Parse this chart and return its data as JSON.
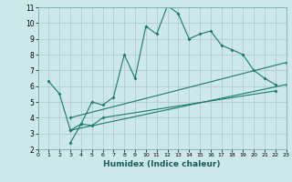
{
  "title": "",
  "xlabel": "Humidex (Indice chaleur)",
  "background_color": "#cce8e8",
  "grid_color": "#b0cccc",
  "line_color": "#1a7a6a",
  "xlim": [
    0,
    23
  ],
  "ylim": [
    2,
    11
  ],
  "xticks": [
    0,
    1,
    2,
    3,
    4,
    5,
    6,
    7,
    8,
    9,
    10,
    11,
    12,
    13,
    14,
    15,
    16,
    17,
    18,
    19,
    20,
    21,
    22,
    23
  ],
  "yticks": [
    2,
    3,
    4,
    5,
    6,
    7,
    8,
    9,
    10,
    11
  ],
  "line1_x": [
    1,
    2,
    3,
    4,
    5,
    6,
    7,
    8,
    9,
    10,
    11,
    12,
    13,
    14,
    15,
    16,
    17,
    18,
    19,
    20,
    21,
    22
  ],
  "line1_y": [
    6.3,
    5.5,
    3.2,
    3.6,
    5.0,
    4.8,
    5.3,
    8.0,
    6.5,
    9.8,
    9.3,
    11.1,
    10.6,
    9.0,
    9.3,
    9.5,
    8.6,
    8.3,
    8.0,
    7.0,
    6.5,
    6.1
  ],
  "line2_x": [
    3,
    4,
    5,
    6,
    22
  ],
  "line2_y": [
    2.4,
    3.6,
    3.5,
    4.0,
    5.7
  ],
  "line3_x": [
    3,
    23
  ],
  "line3_y": [
    3.2,
    6.1
  ],
  "line4_x": [
    3,
    23
  ],
  "line4_y": [
    4.0,
    7.5
  ]
}
